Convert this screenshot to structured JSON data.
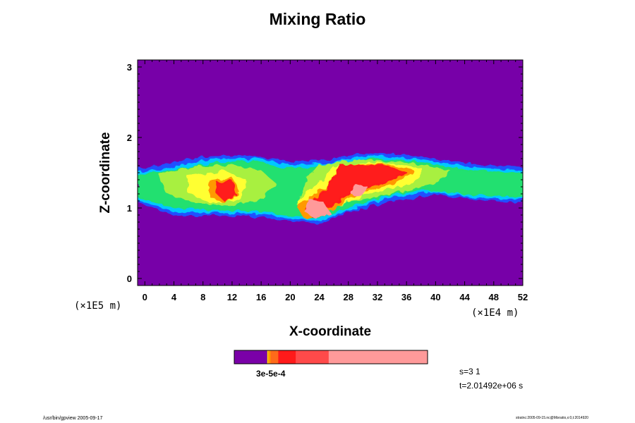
{
  "chart_data": {
    "type": "heatmap",
    "title": "Mixing Ratio",
    "xlabel": "X-coordinate",
    "ylabel": "Z-coordinate",
    "x_scale_label": "(×1E4 m)",
    "y_scale_label": "(×1E5 m)",
    "xlim": [
      -1,
      52
    ],
    "ylim": [
      -0.1,
      3.1
    ],
    "x_ticks": [
      "0",
      "4",
      "8",
      "12",
      "16",
      "20",
      "24",
      "28",
      "32",
      "36",
      "40",
      "44",
      "48",
      "52"
    ],
    "y_ticks": [
      "0",
      "1",
      "2",
      "3"
    ],
    "colorbar_label": "3e-5e-4",
    "colorbar_colors": [
      "#7a00a8",
      "#ffe000",
      "#ff9900",
      "#ff6a1a",
      "#ff1a1a",
      "#ff4a4a",
      "#ff9a9a"
    ],
    "colorbar_fractions": [
      0.17,
      0.005,
      0.012,
      0.04,
      0.09,
      0.17,
      0.51
    ],
    "background_color": "#7700a8",
    "step_label": "s=3 1",
    "time_label": "t=2.01492e+06 s"
  },
  "footer": {
    "left": "/usr/bin/gpview 2005-09-17",
    "right": "stratnc:2005-09-15.nc@Mixratio,x:0,t:2014920"
  }
}
